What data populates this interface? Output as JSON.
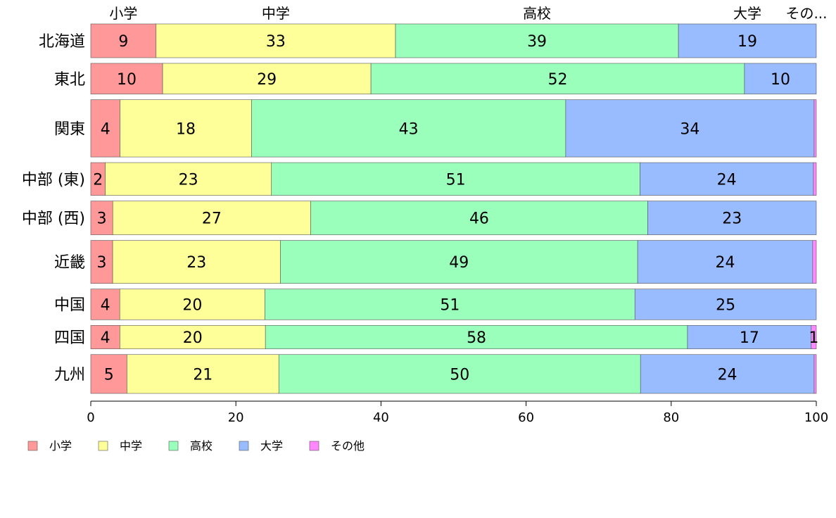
{
  "chart_data": {
    "type": "bar",
    "orientation": "horizontal",
    "stacked": true,
    "categories": [
      "北海道",
      "東北",
      "関東",
      "中部 (東)",
      "中部 (西)",
      "近畿",
      "中国",
      "四国",
      "九州"
    ],
    "series": [
      {
        "name": "小学",
        "color": "#FF9999",
        "values": [
          9,
          10,
          4,
          2,
          3,
          3,
          4,
          4,
          5
        ],
        "labels": [
          "9",
          "10",
          "4",
          "2",
          "3",
          "3",
          "4",
          "4",
          "5"
        ]
      },
      {
        "name": "中学",
        "color": "#FFFF99",
        "values": [
          33,
          29,
          18,
          23,
          27,
          23,
          20,
          20,
          21
        ],
        "labels": [
          "33",
          "29",
          "18",
          "23",
          "27",
          "23",
          "20",
          "20",
          "21"
        ]
      },
      {
        "name": "高校",
        "color": "#99FFBB",
        "values": [
          39,
          52,
          43,
          51,
          46,
          49,
          51,
          58,
          50
        ],
        "labels": [
          "39",
          "52",
          "43",
          "51",
          "46",
          "49",
          "51",
          "58",
          "50"
        ]
      },
      {
        "name": "大学",
        "color": "#99BBFF",
        "values": [
          19,
          10,
          34,
          24,
          23,
          24,
          25,
          17,
          24
        ],
        "labels": [
          "19",
          "10",
          "34",
          "24",
          "23",
          "24",
          "25",
          "17",
          "24"
        ]
      },
      {
        "name": "その他",
        "color": "#FF88FF",
        "values": [
          0,
          0,
          0.3,
          0.4,
          0,
          0.5,
          0,
          0.7,
          0.3
        ],
        "labels": [
          "",
          "",
          "",
          "",
          "",
          "",
          "",
          "1",
          ""
        ]
      }
    ],
    "row_weights": [
      33,
      30,
      56,
      32,
      33,
      42,
      30,
      23,
      38
    ],
    "top_labels": [
      "小学",
      "中学",
      "高校",
      "大学",
      "その..."
    ],
    "xlim": [
      0,
      100
    ],
    "x_ticks": [
      0,
      20,
      40,
      60,
      80,
      100
    ],
    "legend": {
      "position": "bottom-left",
      "items": [
        "小学",
        "中学",
        "高校",
        "大学",
        "その他"
      ]
    },
    "grid": false
  }
}
